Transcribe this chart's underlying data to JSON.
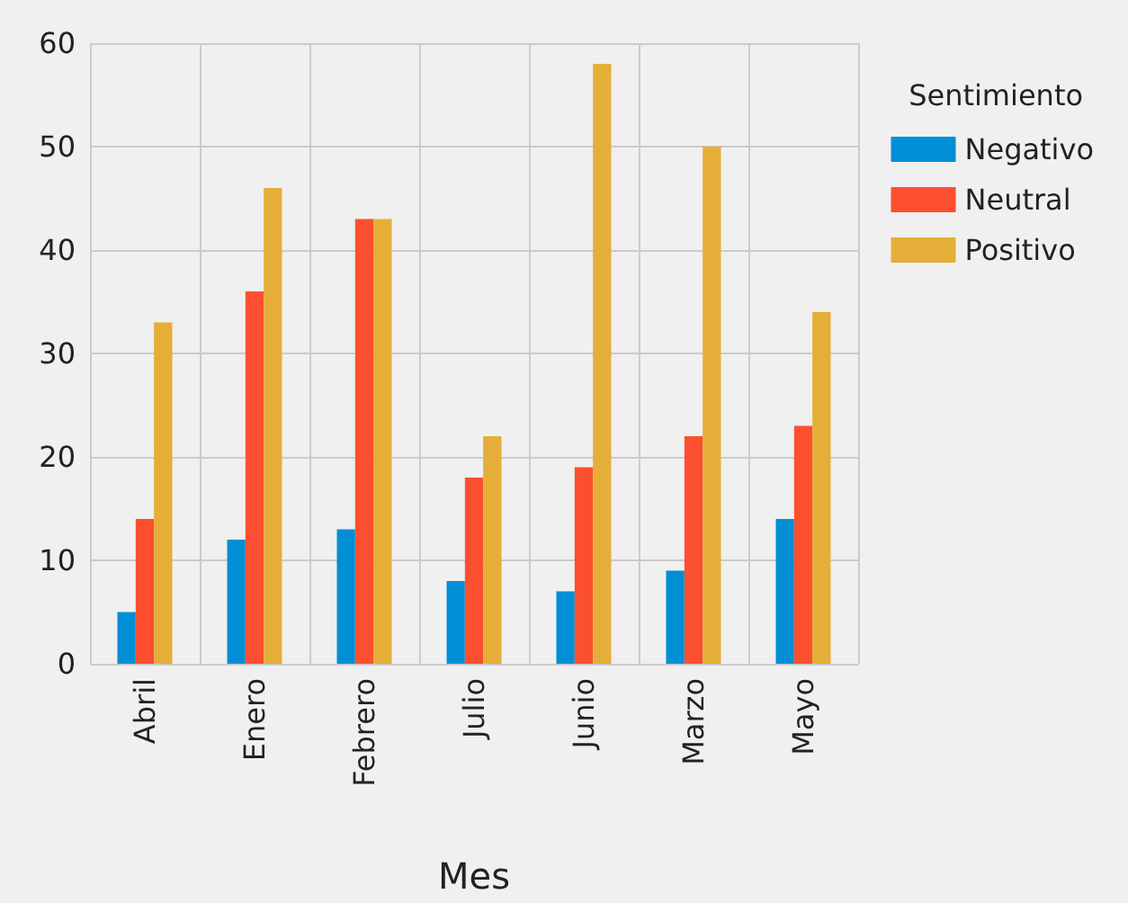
{
  "chart_data": {
    "type": "bar",
    "xlabel": "Mes",
    "legend_title": "Sentimiento",
    "categories": [
      "Abril",
      "Enero",
      "Febrero",
      "Julio",
      "Junio",
      "Marzo",
      "Mayo"
    ],
    "series": [
      {
        "name": "Negativo",
        "color": "#008fd5",
        "values": [
          5,
          12,
          13,
          8,
          7,
          9,
          14
        ]
      },
      {
        "name": "Neutral",
        "color": "#fc4f30",
        "values": [
          14,
          36,
          43,
          18,
          19,
          22,
          23
        ]
      },
      {
        "name": "Positivo",
        "color": "#e5ae38",
        "values": [
          33,
          46,
          43,
          22,
          58,
          50,
          34
        ]
      }
    ],
    "ylim": [
      0,
      60
    ],
    "yticks": [
      0,
      10,
      20,
      30,
      40,
      50,
      60
    ],
    "grid": true,
    "legend": "right"
  }
}
